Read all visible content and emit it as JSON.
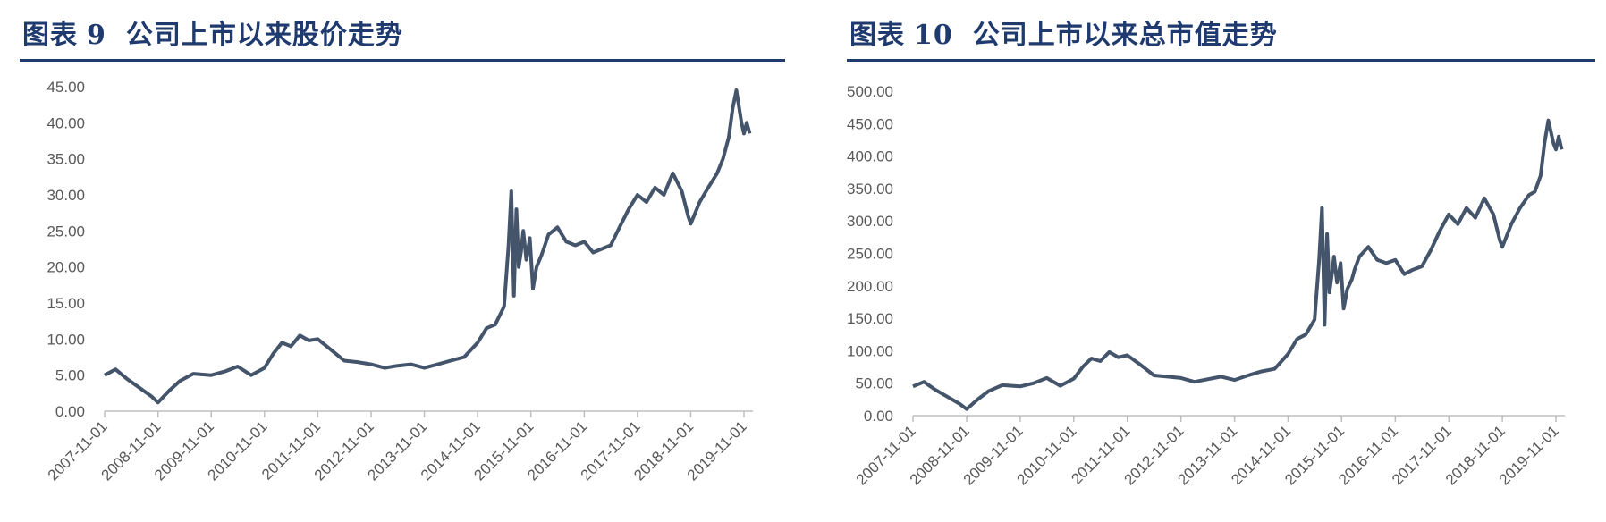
{
  "chart_data": [
    {
      "type": "line",
      "fig_label": "图表",
      "fig_number": "9",
      "title": "公司上市以来股价走势",
      "xlabel": "",
      "ylabel": "",
      "ylim": [
        0,
        45
      ],
      "y_ticks": [
        "0.00",
        "5.00",
        "10.00",
        "15.00",
        "20.00",
        "25.00",
        "30.00",
        "35.00",
        "40.00",
        "45.00"
      ],
      "x_ticks": [
        "2007-11-01",
        "2008-11-01",
        "2009-11-01",
        "2010-11-01",
        "2011-11-01",
        "2012-11-01",
        "2013-11-01",
        "2014-11-01",
        "2015-11-01",
        "2016-11-01",
        "2017-11-01",
        "2018-11-01",
        "2019-11-01"
      ],
      "grid": false,
      "legend": "none",
      "series_color": "#44546a",
      "series": [
        {
          "x": [
            "2007-11-01",
            "2008-01-15",
            "2008-04-01",
            "2008-07-01",
            "2008-09-15",
            "2008-11-01",
            "2009-01-15",
            "2009-04-01",
            "2009-07-01",
            "2009-11-01",
            "2010-02-01",
            "2010-05-01",
            "2010-08-01",
            "2010-11-01",
            "2011-01-01",
            "2011-03-01",
            "2011-05-01",
            "2011-07-01",
            "2011-09-01",
            "2011-11-01",
            "2012-02-01",
            "2012-05-01",
            "2012-08-01",
            "2012-11-01",
            "2013-02-01",
            "2013-05-01",
            "2013-08-01",
            "2013-11-01",
            "2014-02-01",
            "2014-05-01",
            "2014-08-01",
            "2014-11-01",
            "2015-01-01",
            "2015-03-01",
            "2015-05-01",
            "2015-06-01",
            "2015-06-20",
            "2015-07-08",
            "2015-07-25",
            "2015-08-10",
            "2015-08-25",
            "2015-09-10",
            "2015-10-01",
            "2015-10-25",
            "2015-11-15",
            "2015-12-10",
            "2016-01-10",
            "2016-01-28",
            "2016-03-01",
            "2016-05-01",
            "2016-07-01",
            "2016-09-01",
            "2016-11-01",
            "2017-01-01",
            "2017-03-01",
            "2017-05-01",
            "2017-07-01",
            "2017-09-01",
            "2017-11-01",
            "2018-01-01",
            "2018-03-01",
            "2018-05-01",
            "2018-07-01",
            "2018-09-01",
            "2018-10-15",
            "2018-11-01",
            "2019-01-01",
            "2019-03-01",
            "2019-05-01",
            "2019-06-10",
            "2019-07-20",
            "2019-08-15",
            "2019-09-10",
            "2019-10-15",
            "2019-11-01",
            "2019-11-20",
            "2019-12-10"
          ],
          "y": [
            5.0,
            5.8,
            4.5,
            3.2,
            2.1,
            1.2,
            2.8,
            4.2,
            5.2,
            5.0,
            5.5,
            6.2,
            5.0,
            6.0,
            8.0,
            9.5,
            9.0,
            10.5,
            9.8,
            10.0,
            8.5,
            7.0,
            6.8,
            6.5,
            6.0,
            6.3,
            6.5,
            6.0,
            6.5,
            7.0,
            7.5,
            9.5,
            11.5,
            12.0,
            14.5,
            23.0,
            30.5,
            16.0,
            28.0,
            20.0,
            22.0,
            25.0,
            21.0,
            24.0,
            17.0,
            20.0,
            21.5,
            22.5,
            24.5,
            25.5,
            23.5,
            23.0,
            23.5,
            22.0,
            22.5,
            23.0,
            25.5,
            28.0,
            30.0,
            29.0,
            31.0,
            30.0,
            33.0,
            30.5,
            27.0,
            26.0,
            29.0,
            31.0,
            33.0,
            35.0,
            38.0,
            42.0,
            44.5,
            40.0,
            38.5,
            40.0,
            38.5
          ]
        }
      ]
    },
    {
      "type": "line",
      "fig_label": "图表",
      "fig_number": "10",
      "title": "公司上市以来总市值走势",
      "xlabel": "",
      "ylabel": "",
      "ylim": [
        0,
        500
      ],
      "y_ticks": [
        "0.00",
        "50.00",
        "100.00",
        "150.00",
        "200.00",
        "250.00",
        "300.00",
        "350.00",
        "400.00",
        "450.00",
        "500.00"
      ],
      "x_ticks": [
        "2007-11-01",
        "2008-11-01",
        "2009-11-01",
        "2010-11-01",
        "2011-11-01",
        "2012-11-01",
        "2013-11-01",
        "2014-11-01",
        "2015-11-01",
        "2016-11-01",
        "2017-11-01",
        "2018-11-01",
        "2019-11-01"
      ],
      "grid": false,
      "legend": "none",
      "series_color": "#44546a",
      "series": [
        {
          "x": [
            "2007-11-01",
            "2008-01-15",
            "2008-04-01",
            "2008-07-01",
            "2008-09-15",
            "2008-11-01",
            "2009-01-15",
            "2009-04-01",
            "2009-07-01",
            "2009-11-01",
            "2010-02-01",
            "2010-05-01",
            "2010-08-01",
            "2010-11-01",
            "2011-01-01",
            "2011-03-01",
            "2011-05-01",
            "2011-07-01",
            "2011-09-01",
            "2011-11-01",
            "2012-02-01",
            "2012-05-01",
            "2012-08-01",
            "2012-11-01",
            "2013-02-01",
            "2013-05-01",
            "2013-08-01",
            "2013-11-01",
            "2014-02-01",
            "2014-05-01",
            "2014-08-01",
            "2014-11-01",
            "2015-01-01",
            "2015-03-01",
            "2015-05-01",
            "2015-06-01",
            "2015-06-20",
            "2015-07-08",
            "2015-07-25",
            "2015-08-10",
            "2015-08-25",
            "2015-09-10",
            "2015-10-01",
            "2015-10-25",
            "2015-11-15",
            "2015-12-10",
            "2016-01-10",
            "2016-01-28",
            "2016-03-01",
            "2016-05-01",
            "2016-07-01",
            "2016-09-01",
            "2016-11-01",
            "2017-01-01",
            "2017-03-01",
            "2017-05-01",
            "2017-07-01",
            "2017-09-01",
            "2017-11-01",
            "2018-01-01",
            "2018-03-01",
            "2018-05-01",
            "2018-07-01",
            "2018-09-01",
            "2018-10-15",
            "2018-11-01",
            "2019-01-01",
            "2019-03-01",
            "2019-05-01",
            "2019-06-10",
            "2019-07-20",
            "2019-08-15",
            "2019-09-10",
            "2019-10-15",
            "2019-11-01",
            "2019-11-20",
            "2019-12-10"
          ],
          "y": [
            45,
            52,
            40,
            28,
            18,
            10,
            25,
            38,
            47,
            45,
            50,
            58,
            46,
            57,
            75,
            88,
            84,
            98,
            90,
            93,
            78,
            62,
            60,
            58,
            52,
            56,
            60,
            55,
            62,
            68,
            72,
            95,
            118,
            125,
            148,
            240,
            320,
            140,
            280,
            190,
            215,
            245,
            205,
            235,
            165,
            195,
            210,
            225,
            245,
            260,
            240,
            235,
            240,
            218,
            225,
            230,
            255,
            285,
            310,
            295,
            320,
            305,
            335,
            310,
            270,
            260,
            295,
            320,
            340,
            345,
            370,
            420,
            455,
            420,
            410,
            430,
            410
          ]
        }
      ]
    }
  ]
}
